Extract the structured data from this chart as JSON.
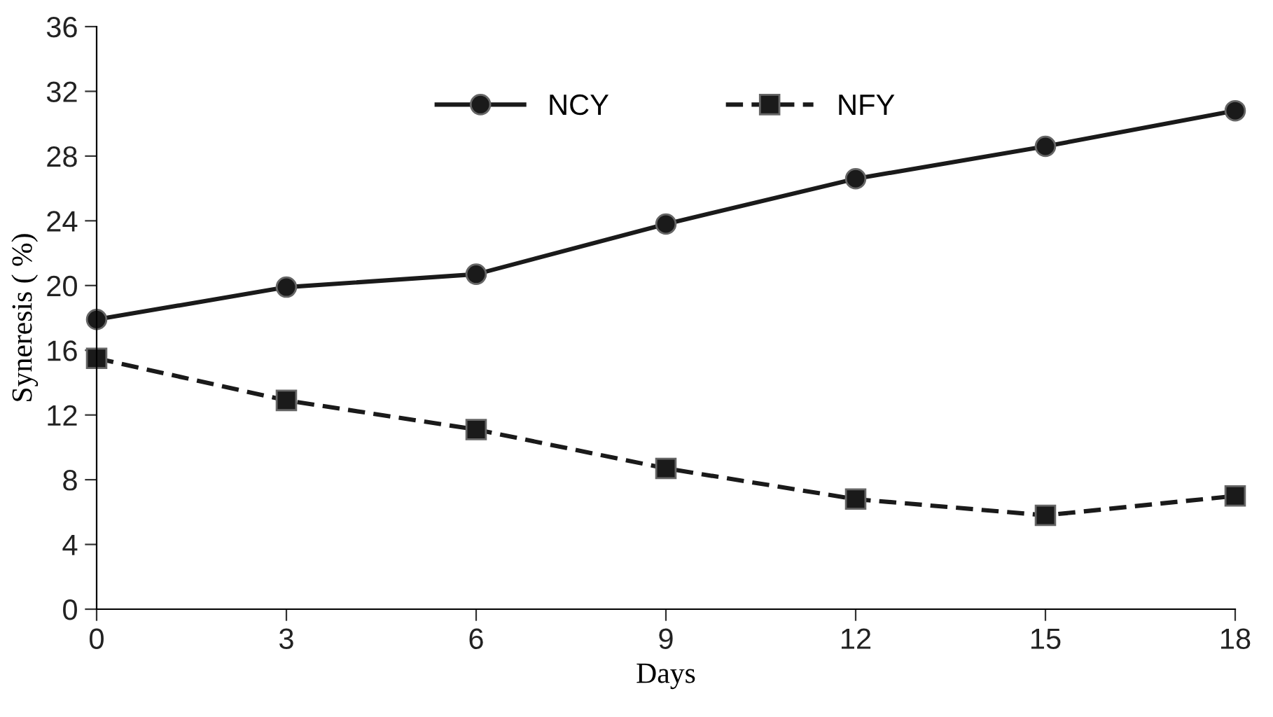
{
  "chart_data": {
    "type": "line",
    "xlabel": "Days",
    "ylabel": "Syneresis ( %)",
    "x": [
      0,
      3,
      6,
      9,
      12,
      15,
      18
    ],
    "xlim": [
      0,
      18
    ],
    "xticks": [
      0,
      3,
      6,
      9,
      12,
      15,
      18
    ],
    "ylim": [
      0,
      36
    ],
    "yticks": [
      0,
      4,
      8,
      12,
      16,
      20,
      24,
      28,
      32,
      36
    ],
    "grid": false,
    "legend": "top",
    "series": [
      {
        "name": "NCY",
        "color": "#1a1a1a",
        "marker": "circle",
        "line_style": "solid",
        "values": [
          17.9,
          19.9,
          20.7,
          23.8,
          26.6,
          28.6,
          30.8
        ]
      },
      {
        "name": "NFY",
        "color": "#1a1a1a",
        "marker": "square",
        "line_style": "dashed",
        "values": [
          15.5,
          12.9,
          11.1,
          8.7,
          6.8,
          5.8,
          7.0
        ]
      }
    ]
  }
}
